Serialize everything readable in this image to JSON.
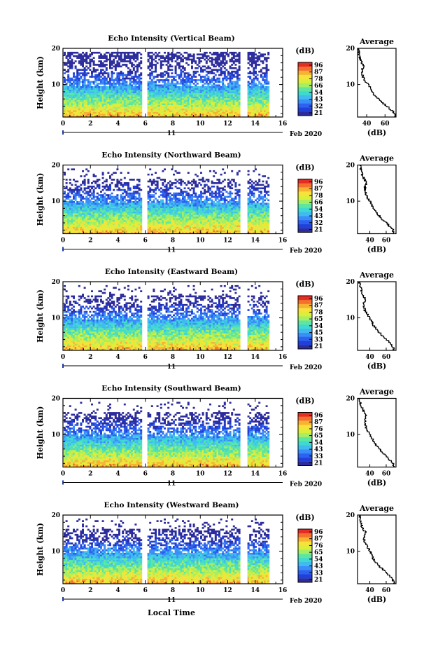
{
  "figure": {
    "xlabel": "Local Time",
    "date_label": "11",
    "date_suffix": "Feb 2020",
    "ylabel": "Height (km)",
    "colorbar_unit": "(dB)",
    "avg_title": "Average",
    "avg_xlabel": "(dB)"
  },
  "colors": {
    "colormap": [
      "#2c2c9c",
      "#2140d8",
      "#2d62f0",
      "#3a8ef7",
      "#3fbbf0",
      "#40d9d0",
      "#5ee6a0",
      "#a6ee63",
      "#dbee3a",
      "#f7e23c",
      "#f7b233",
      "#f3712d",
      "#e42d24"
    ]
  },
  "chart_data": [
    {
      "type": "heatmap",
      "title": "Echo Intensity (Vertical Beam)",
      "x_range": [
        0,
        16
      ],
      "x_ticks": [
        "0",
        "2",
        "4",
        "6",
        "8",
        "10",
        "12",
        "14",
        "16"
      ],
      "y_range": [
        1,
        20
      ],
      "y_ticks": [
        "10",
        "20"
      ],
      "data_gaps_hours": [
        [
          5.75,
          6.05
        ],
        [
          13.0,
          13.3
        ]
      ],
      "data_end_hour": 15.0,
      "colorbar_ticks": [
        "96",
        "87",
        "78",
        "66",
        "54",
        "43",
        "32",
        "21"
      ],
      "average_profile": {
        "x_ticks": [
          "40",
          "60"
        ],
        "x_range": [
          30,
          72
        ],
        "y_ticks": [
          "10",
          "20"
        ],
        "height_km": [
          1,
          2,
          3,
          4,
          5,
          6,
          7,
          8,
          9,
          10,
          11,
          12,
          13,
          14,
          15,
          16,
          17,
          18,
          19,
          20
        ],
        "db": [
          71,
          70,
          66,
          62,
          56,
          52,
          48,
          46,
          44,
          41,
          38,
          36,
          35,
          35,
          37,
          34,
          33,
          32,
          31,
          30
        ]
      }
    },
    {
      "type": "heatmap",
      "title": "Echo Intensity (Northward Beam)",
      "x_range": [
        0,
        16
      ],
      "x_ticks": [
        "0",
        "2",
        "4",
        "6",
        "8",
        "10",
        "12",
        "14",
        "16"
      ],
      "y_range": [
        1,
        20
      ],
      "y_ticks": [
        "10",
        "20"
      ],
      "data_gaps_hours": [
        [
          5.75,
          6.05
        ],
        [
          13.0,
          13.3
        ]
      ],
      "data_end_hour": 15.0,
      "colorbar_ticks": [
        "96",
        "87",
        "78",
        "66",
        "54",
        "43",
        "32",
        "21"
      ],
      "average_profile": {
        "x_ticks": [
          "40",
          "60"
        ],
        "x_range": [
          25,
          72
        ],
        "y_ticks": [
          "10",
          "20"
        ],
        "height_km": [
          1,
          2,
          3,
          4,
          5,
          6,
          7,
          8,
          9,
          10,
          11,
          12,
          13,
          14,
          15,
          16,
          17,
          18,
          19,
          20
        ],
        "db": [
          70,
          68,
          64,
          60,
          55,
          51,
          47,
          44,
          42,
          40,
          37,
          35,
          34,
          34,
          36,
          33,
          31,
          30,
          29,
          28
        ]
      }
    },
    {
      "type": "heatmap",
      "title": "Echo Intensity (Eastward Beam)",
      "x_range": [
        0,
        16
      ],
      "x_ticks": [
        "0",
        "2",
        "4",
        "6",
        "8",
        "10",
        "12",
        "14",
        "16"
      ],
      "y_range": [
        1,
        20
      ],
      "y_ticks": [
        "10",
        "20"
      ],
      "data_gaps_hours": [
        [
          5.75,
          6.05
        ],
        [
          13.0,
          13.3
        ]
      ],
      "data_end_hour": 15.0,
      "colorbar_ticks": [
        "96",
        "87",
        "78",
        "65",
        "54",
        "45",
        "33",
        "21"
      ],
      "average_profile": {
        "x_ticks": [
          "40",
          "60"
        ],
        "x_range": [
          25,
          72
        ],
        "y_ticks": [
          "10",
          "20"
        ],
        "height_km": [
          1,
          2,
          3,
          4,
          5,
          6,
          7,
          8,
          9,
          10,
          11,
          12,
          13,
          14,
          15,
          16,
          17,
          18,
          19,
          20
        ],
        "db": [
          70,
          68,
          64,
          60,
          55,
          51,
          47,
          44,
          42,
          39,
          37,
          34,
          33,
          33,
          35,
          32,
          30,
          29,
          28,
          27
        ]
      }
    },
    {
      "type": "heatmap",
      "title": "Echo Intensity (Southward Beam)",
      "x_range": [
        0,
        16
      ],
      "x_ticks": [
        "0",
        "2",
        "4",
        "6",
        "8",
        "10",
        "12",
        "14",
        "16"
      ],
      "y_range": [
        1,
        20
      ],
      "y_ticks": [
        "10",
        "20"
      ],
      "data_gaps_hours": [
        [
          5.75,
          6.05
        ],
        [
          13.0,
          13.3
        ]
      ],
      "data_end_hour": 15.0,
      "colorbar_ticks": [
        "96",
        "87",
        "76",
        "65",
        "54",
        "43",
        "33",
        "21"
      ],
      "average_profile": {
        "x_ticks": [
          "40",
          "60"
        ],
        "x_range": [
          25,
          72
        ],
        "y_ticks": [
          "10",
          "20"
        ],
        "height_km": [
          1,
          2,
          3,
          4,
          5,
          6,
          7,
          8,
          9,
          10,
          11,
          12,
          13,
          14,
          15,
          16,
          17,
          18,
          19,
          20
        ],
        "db": [
          70,
          68,
          64,
          60,
          55,
          51,
          47,
          45,
          42,
          40,
          37,
          35,
          34,
          34,
          36,
          33,
          31,
          29,
          28,
          27
        ]
      }
    },
    {
      "type": "heatmap",
      "title": "Echo Intensity (Westward Beam)",
      "x_range": [
        0,
        16
      ],
      "x_ticks": [
        "0",
        "2",
        "4",
        "6",
        "8",
        "10",
        "12",
        "14",
        "16"
      ],
      "y_range": [
        1,
        20
      ],
      "y_ticks": [
        "10",
        "20"
      ],
      "data_gaps_hours": [
        [
          5.75,
          6.05
        ],
        [
          13.0,
          13.3
        ]
      ],
      "data_end_hour": 15.0,
      "colorbar_ticks": [
        "96",
        "87",
        "76",
        "65",
        "54",
        "43",
        "33",
        "21"
      ],
      "average_profile": {
        "x_ticks": [
          "40",
          "60"
        ],
        "x_range": [
          25,
          72
        ],
        "y_ticks": [
          "10",
          "20"
        ],
        "height_km": [
          1,
          2,
          3,
          4,
          5,
          6,
          7,
          8,
          9,
          10,
          11,
          12,
          13,
          14,
          15,
          16,
          17,
          18,
          19,
          20
        ],
        "db": [
          70,
          68,
          64,
          60,
          55,
          51,
          47,
          44,
          42,
          40,
          37,
          35,
          33,
          33,
          35,
          32,
          30,
          29,
          28,
          27
        ]
      }
    }
  ]
}
